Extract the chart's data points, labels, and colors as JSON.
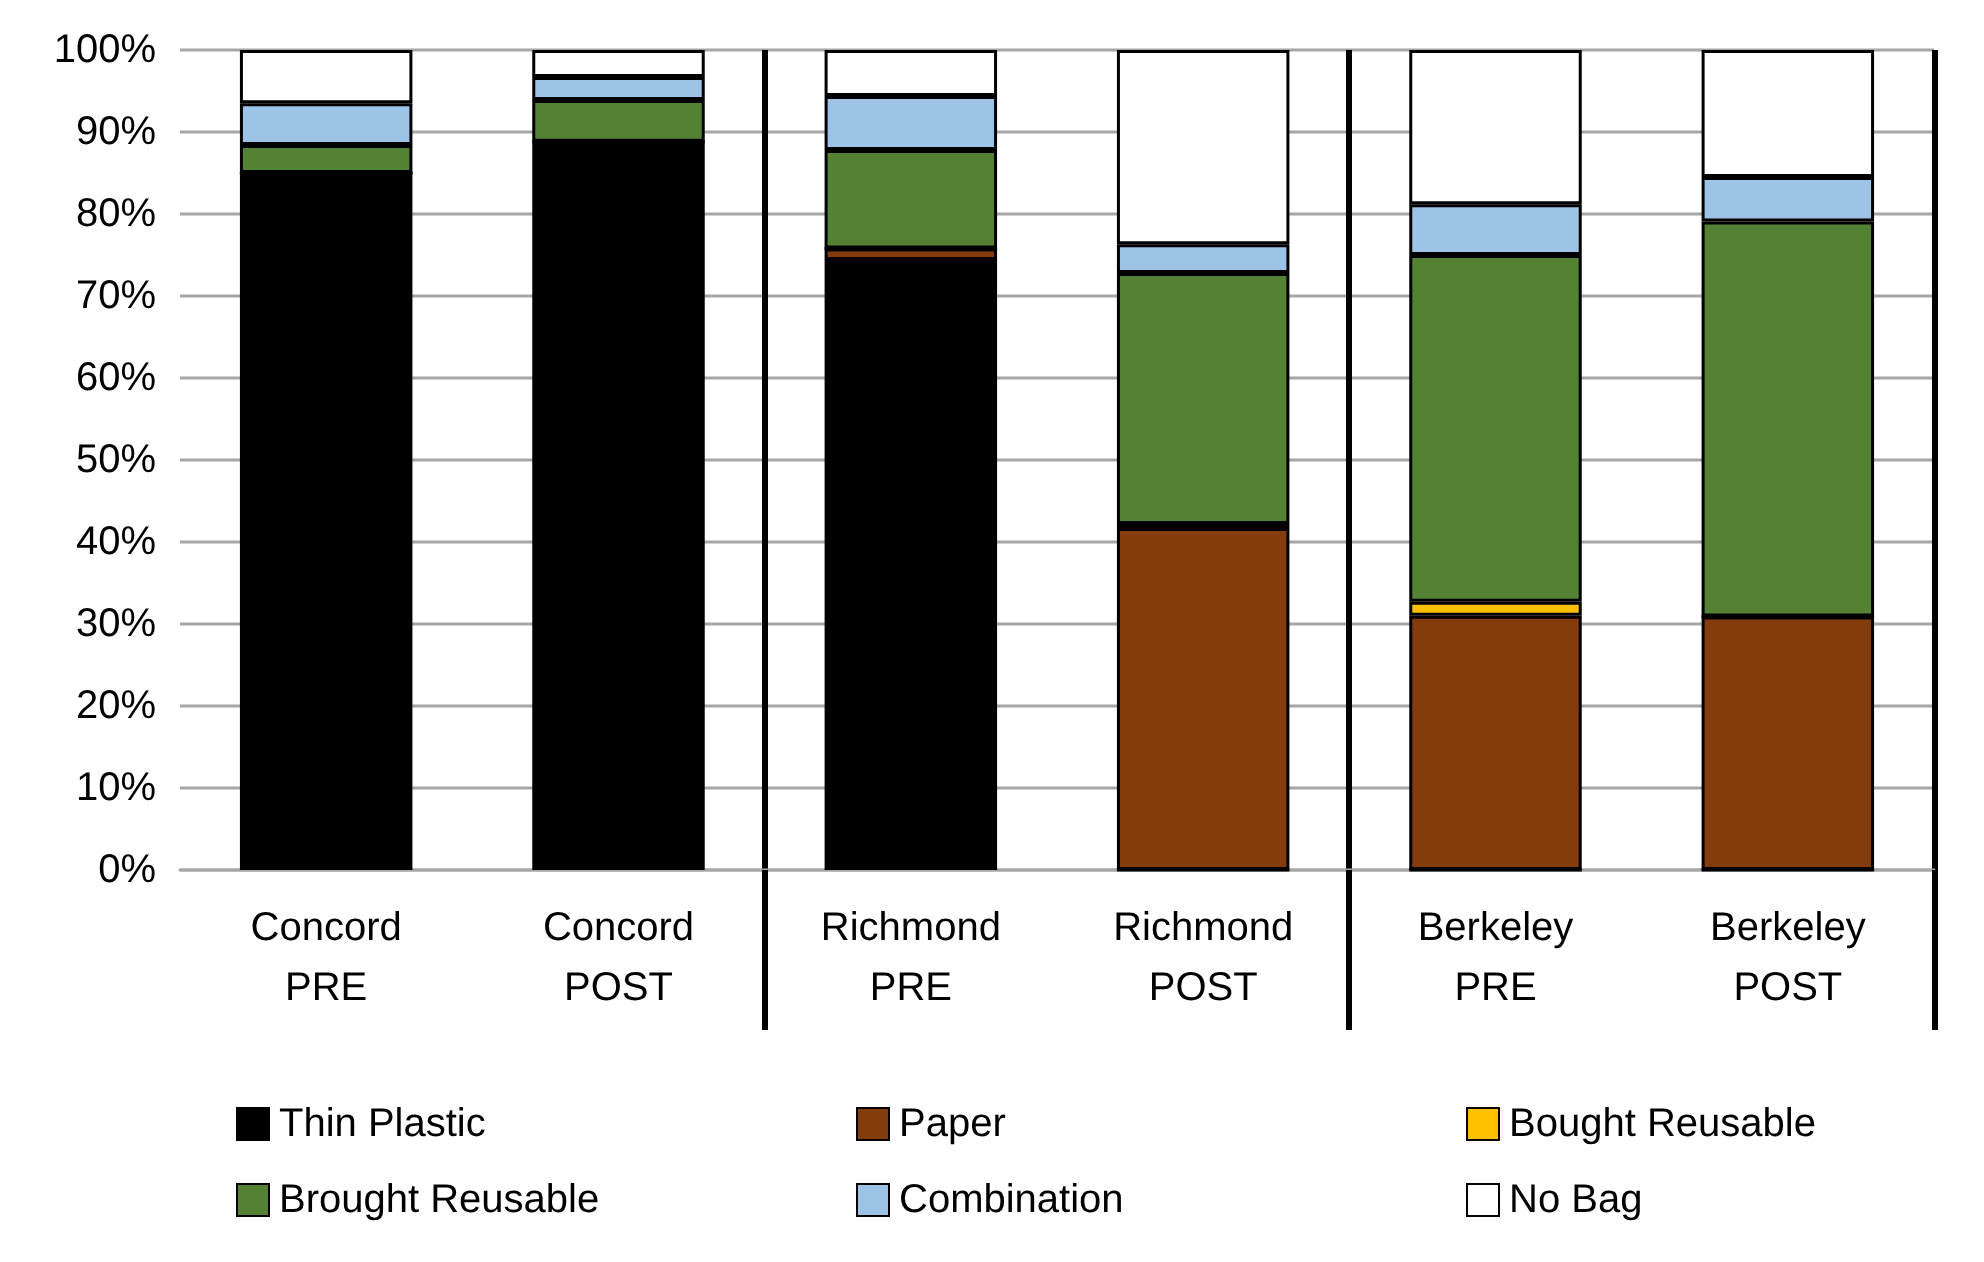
{
  "chart_data": {
    "type": "bar",
    "stacked": true,
    "categories": [
      "Concord\nPRE",
      "Concord\nPOST",
      "Richmond\nPRE",
      "Richmond\nPOST",
      "Berkeley\nPRE",
      "Berkeley\nPOST"
    ],
    "series": [
      {
        "name": "Thin Plastic",
        "color": "#000000",
        "values": [
          85.0,
          88.3,
          74.4,
          0,
          0,
          0
        ]
      },
      {
        "name": "Paper",
        "color": "#843c0c",
        "values": [
          0,
          0.5,
          1.4,
          41.7,
          31.0,
          30.9
        ]
      },
      {
        "name": "Bought Reusable",
        "color": "#ffc000",
        "values": [
          0,
          0,
          0,
          0.5,
          1.7,
          0
        ]
      },
      {
        "name": "Brought Reusable",
        "color": "#548235",
        "values": [
          3.4,
          5.1,
          12.0,
          30.6,
          42.3,
          48.2
        ]
      },
      {
        "name": "Combination",
        "color": "#9dc3e6",
        "values": [
          5.1,
          2.8,
          6.6,
          3.5,
          6.2,
          5.4
        ]
      },
      {
        "name": "No Bag",
        "color": "#ffffff",
        "values": [
          6.5,
          3.3,
          5.6,
          23.7,
          18.8,
          15.5
        ]
      }
    ],
    "ylim": [
      0,
      100
    ],
    "yticks": [
      {
        "value": 0,
        "label": "0%"
      },
      {
        "value": 10,
        "label": "10%"
      },
      {
        "value": 20,
        "label": "20%"
      },
      {
        "value": 30,
        "label": "30%"
      },
      {
        "value": 40,
        "label": "40%"
      },
      {
        "value": 50,
        "label": "50%"
      },
      {
        "value": 60,
        "label": "60%"
      },
      {
        "value": 70,
        "label": "70%"
      },
      {
        "value": 80,
        "label": "80%"
      },
      {
        "value": 90,
        "label": "90%"
      },
      {
        "value": 100,
        "label": "100%"
      }
    ],
    "grid": "y",
    "legend": "bottom"
  }
}
